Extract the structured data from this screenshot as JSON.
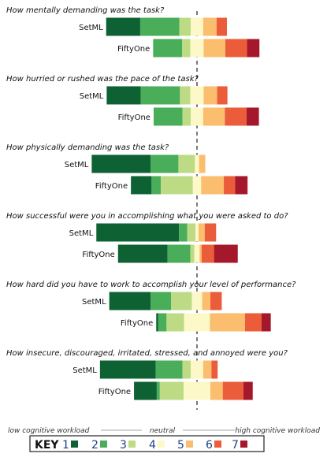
{
  "chart_data": {
    "type": "bar",
    "stacked": "diverging",
    "colors": [
      "#0e6133",
      "#4aad5a",
      "#bddb85",
      "#fcf8c8",
      "#fbbd6e",
      "#ea5c3a",
      "#a5182b"
    ],
    "questions": [
      {
        "title": "How mentally demanding was the task?",
        "series": [
          {
            "name": "SetML",
            "values": [
              33,
              38,
              11,
              12,
              13,
              10,
              0
            ]
          },
          {
            "name": "FiftyOne",
            "values": [
              0,
              28,
              8,
              13,
              21,
              21,
              12
            ]
          }
        ]
      },
      {
        "title": "How hurried or rushed was the pace of the task?",
        "series": [
          {
            "name": "SetML",
            "values": [
              33,
              38,
              10,
              13,
              13,
              10,
              0
            ]
          },
          {
            "name": "FiftyOne",
            "values": [
              0,
              28,
              8,
              12,
              21,
              21,
              12
            ]
          }
        ]
      },
      {
        "title": "How physically demanding was the task?",
        "series": [
          {
            "name": "SetML",
            "values": [
              57,
              27,
              16,
              4,
              6,
              0,
              0
            ]
          },
          {
            "name": "FiftyOne",
            "values": [
              20,
              9,
              31,
              8,
              22,
              11,
              12
            ]
          }
        ]
      },
      {
        "title": "How successful were you in accomplishing what you were asked to do?",
        "series": [
          {
            "name": "SetML",
            "values": [
              80,
              8,
              8,
              3,
              6,
              11,
              0
            ]
          },
          {
            "name": "FiftyOne",
            "values": [
              48,
              22,
              4,
              5,
              2,
              12,
              23
            ]
          }
        ]
      },
      {
        "title": "How hard did you have to work to accomplish your level of performance?",
        "series": [
          {
            "name": "SetML",
            "values": [
              40,
              20,
              20,
              10,
              8,
              11,
              0
            ]
          },
          {
            "name": "FiftyOne",
            "values": [
              2,
              8,
              17,
              25,
              34,
              16,
              9
            ]
          }
        ]
      },
      {
        "title": "How insecure, discouraged, irritated, stressed, and annoyed were you?",
        "series": [
          {
            "name": "SetML",
            "values": [
              54,
              26,
              8,
              12,
              8,
              6,
              0
            ]
          },
          {
            "name": "FiftyOne",
            "values": [
              22,
              3,
              23,
              26,
              12,
              20,
              9
            ]
          }
        ]
      }
    ],
    "key": {
      "title": "KEY",
      "low_label": "low cognitive workload",
      "neutral_label": "neutral",
      "high_label": "high cognitive workload",
      "levels": [
        "1",
        "2",
        "3",
        "4",
        "5",
        "6",
        "7"
      ]
    }
  }
}
